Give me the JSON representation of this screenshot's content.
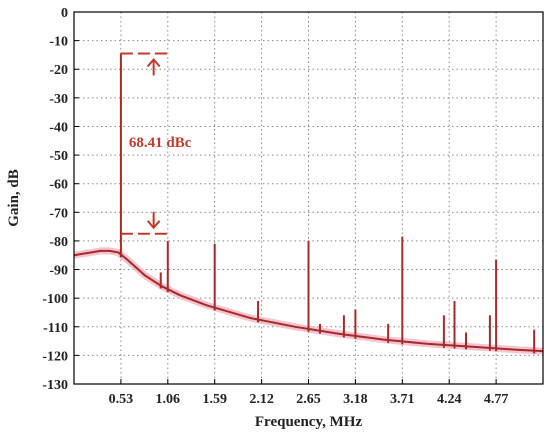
{
  "chart_data": {
    "type": "line",
    "title": "",
    "xlabel": "Frequency, MHz",
    "ylabel": "Gain, dB",
    "xlim": [
      0,
      5.3
    ],
    "ylim": [
      -130,
      0
    ],
    "xticks": [
      0.53,
      1.06,
      1.59,
      2.12,
      2.65,
      3.18,
      3.71,
      4.24,
      4.77
    ],
    "xtick_labels": [
      "0.53",
      "1.06",
      "1.59",
      "2.12",
      "2.65",
      "3.18",
      "3.71",
      "4.24",
      "4.77"
    ],
    "yticks": [
      0,
      -10,
      -20,
      -30,
      -40,
      -50,
      -60,
      -70,
      -80,
      -90,
      -100,
      -110,
      -120,
      -130
    ],
    "ytick_labels": [
      "0",
      "-10",
      "-20",
      "-30",
      "-40",
      "-50",
      "-60",
      "-70",
      "-80",
      "-90",
      "-100",
      "-110",
      "-120",
      "-130"
    ],
    "grid": true,
    "colors": {
      "line": "#a52a2a",
      "shade": "#f2b8c6",
      "annotation": "#c0392b",
      "grid": "#888888"
    },
    "series": [
      {
        "values_x": [
          0,
          0.1,
          0.2,
          0.3,
          0.4,
          0.5,
          0.6,
          0.8,
          1.0,
          1.2,
          1.5,
          2.0,
          2.5,
          3.0,
          3.5,
          4.0,
          4.5,
          5.0,
          5.3
        ],
        "values_y": [
          -85,
          -84.5,
          -84,
          -83.5,
          -83.5,
          -84,
          -86.5,
          -92,
          -96,
          -99,
          -102.5,
          -107,
          -110,
          -112.5,
          -114.5,
          -116,
          -117,
          -118,
          -118.5
        ]
      }
    ],
    "spurs": [
      {
        "x": 0.53,
        "y": -14.5
      },
      {
        "x": 0.98,
        "y": -91
      },
      {
        "x": 1.06,
        "y": -80
      },
      {
        "x": 1.59,
        "y": -81
      },
      {
        "x": 2.08,
        "y": -101
      },
      {
        "x": 2.65,
        "y": -80
      },
      {
        "x": 2.78,
        "y": -109
      },
      {
        "x": 3.05,
        "y": -106
      },
      {
        "x": 3.18,
        "y": -104
      },
      {
        "x": 3.55,
        "y": -109
      },
      {
        "x": 3.71,
        "y": -78.5
      },
      {
        "x": 4.18,
        "y": -106
      },
      {
        "x": 4.3,
        "y": -101
      },
      {
        "x": 4.43,
        "y": -112
      },
      {
        "x": 4.7,
        "y": -106
      },
      {
        "x": 4.77,
        "y": -86.5
      },
      {
        "x": 5.2,
        "y": -111
      }
    ],
    "annotations": [
      {
        "text": "68.41 dBc",
        "top_y": -14.5,
        "bottom_y": -77.5
      }
    ]
  }
}
